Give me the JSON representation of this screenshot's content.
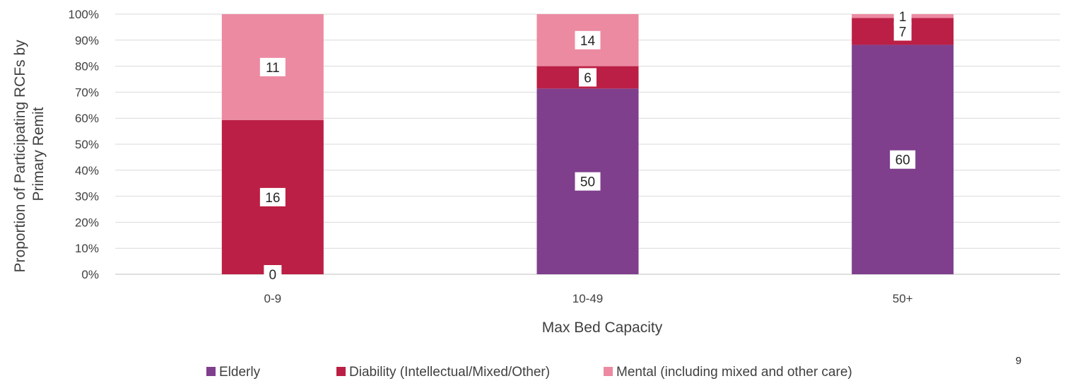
{
  "chart_data": {
    "type": "bar",
    "stacked": true,
    "normalized_percent": true,
    "categories": [
      "0-9",
      "10-49",
      "50+"
    ],
    "series": [
      {
        "name": "Elderly",
        "color": "#7f3f8c",
        "counts": [
          0,
          50,
          60
        ],
        "percent": [
          0,
          71.4,
          88.2
        ]
      },
      {
        "name": "Diability (Intellectual/Mixed/Other)",
        "color": "#bb1f45",
        "counts": [
          16,
          6,
          7
        ],
        "percent": [
          59.3,
          8.6,
          10.3
        ]
      },
      {
        "name": "Mental (including mixed and other care)",
        "color": "#ec8aa2",
        "counts": [
          11,
          14,
          1
        ],
        "percent": [
          40.7,
          20.0,
          1.5
        ]
      }
    ],
    "y_ticks": [
      "0%",
      "10%",
      "20%",
      "30%",
      "40%",
      "50%",
      "60%",
      "70%",
      "80%",
      "90%",
      "100%"
    ],
    "ylim": [
      0,
      100
    ],
    "xlabel": "Max Bed Capacity",
    "ylabel_lines": [
      "Proportion of Participating RCFs by",
      "Primary Remit"
    ],
    "grid": true,
    "legend_position": "bottom"
  },
  "page_number": "9"
}
